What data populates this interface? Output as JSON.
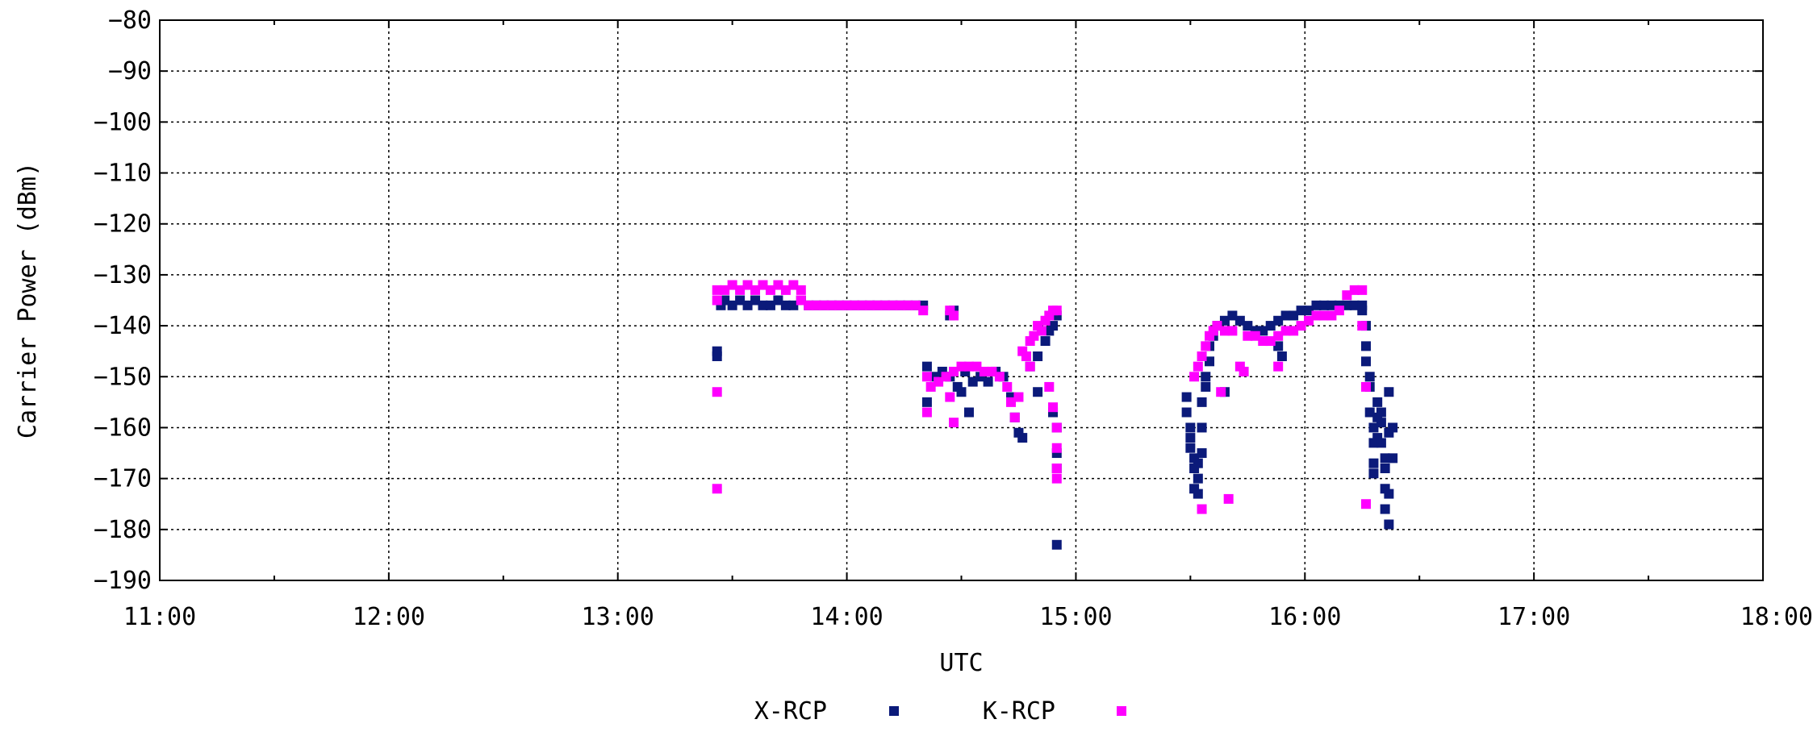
{
  "chart_data": {
    "type": "scatter",
    "title": "",
    "xlabel": "UTC",
    "ylabel": "Carrier Power (dBm)",
    "xlim": [
      "11:00",
      "18:00"
    ],
    "ylim": [
      -190,
      -80
    ],
    "grid": true,
    "legend_position": "bottom-center",
    "x_ticks": [
      "11:00",
      "12:00",
      "13:00",
      "14:00",
      "15:00",
      "16:00",
      "17:00",
      "18:00"
    ],
    "y_ticks": [
      -80,
      -90,
      -100,
      -110,
      -120,
      -130,
      -140,
      -150,
      -160,
      -170,
      -180,
      -190
    ],
    "series": [
      {
        "name": "X-RCP",
        "color": "#0b1a7a",
        "points": [
          [
            "13:26",
            -145
          ],
          [
            "13:26",
            -146
          ],
          [
            "13:27",
            -136
          ],
          [
            "13:28",
            -135
          ],
          [
            "13:30",
            -136
          ],
          [
            "13:32",
            -135
          ],
          [
            "13:34",
            -136
          ],
          [
            "13:36",
            -135
          ],
          [
            "13:38",
            -136
          ],
          [
            "13:40",
            -136
          ],
          [
            "13:42",
            -135
          ],
          [
            "13:44",
            -136
          ],
          [
            "13:46",
            -136
          ],
          [
            "13:48",
            -135
          ],
          [
            "13:50",
            -136
          ],
          [
            "13:52",
            -136
          ],
          [
            "13:54",
            -136
          ],
          [
            "13:56",
            -136
          ],
          [
            "13:58",
            -136
          ],
          [
            "14:00",
            -136
          ],
          [
            "14:02",
            -136
          ],
          [
            "14:04",
            -136
          ],
          [
            "14:06",
            -136
          ],
          [
            "14:08",
            -136
          ],
          [
            "14:10",
            -136
          ],
          [
            "14:12",
            -136
          ],
          [
            "14:14",
            -136
          ],
          [
            "14:16",
            -136
          ],
          [
            "14:18",
            -136
          ],
          [
            "14:20",
            -136
          ],
          [
            "14:21",
            -148
          ],
          [
            "14:21",
            -155
          ],
          [
            "14:23",
            -150
          ],
          [
            "14:25",
            -149
          ],
          [
            "14:27",
            -150
          ],
          [
            "14:29",
            -152
          ],
          [
            "14:31",
            -149
          ],
          [
            "14:33",
            -151
          ],
          [
            "14:27",
            -138
          ],
          [
            "14:28",
            -137
          ],
          [
            "14:30",
            -153
          ],
          [
            "14:32",
            -157
          ],
          [
            "14:35",
            -150
          ],
          [
            "14:37",
            -151
          ],
          [
            "14:39",
            -149
          ],
          [
            "14:41",
            -150
          ],
          [
            "14:43",
            -154
          ],
          [
            "14:44",
            -158
          ],
          [
            "14:45",
            -161
          ],
          [
            "14:46",
            -162
          ],
          [
            "14:48",
            -148
          ],
          [
            "14:50",
            -146
          ],
          [
            "14:52",
            -143
          ],
          [
            "14:53",
            -141
          ],
          [
            "14:54",
            -140
          ],
          [
            "14:55",
            -138
          ],
          [
            "14:50",
            -153
          ],
          [
            "14:54",
            -157
          ],
          [
            "14:55",
            -160
          ],
          [
            "14:55",
            -165
          ],
          [
            "14:55",
            -168
          ],
          [
            "14:55",
            -183
          ],
          [
            "15:29",
            -154
          ],
          [
            "15:29",
            -157
          ],
          [
            "15:30",
            -160
          ],
          [
            "15:30",
            -162
          ],
          [
            "15:30",
            -164
          ],
          [
            "15:31",
            -166
          ],
          [
            "15:31",
            -168
          ],
          [
            "15:31",
            -172
          ],
          [
            "15:32",
            -170
          ],
          [
            "15:32",
            -173
          ],
          [
            "15:32",
            -167
          ],
          [
            "15:33",
            -165
          ],
          [
            "15:33",
            -160
          ],
          [
            "15:33",
            -155
          ],
          [
            "15:34",
            -152
          ],
          [
            "15:34",
            -150
          ],
          [
            "15:35",
            -147
          ],
          [
            "15:35",
            -144
          ],
          [
            "15:36",
            -142
          ],
          [
            "15:37",
            -140
          ],
          [
            "15:39",
            -139
          ],
          [
            "15:41",
            -138
          ],
          [
            "15:43",
            -139
          ],
          [
            "15:45",
            -140
          ],
          [
            "15:47",
            -141
          ],
          [
            "15:49",
            -141
          ],
          [
            "15:51",
            -140
          ],
          [
            "15:53",
            -139
          ],
          [
            "15:55",
            -138
          ],
          [
            "15:57",
            -138
          ],
          [
            "15:59",
            -137
          ],
          [
            "16:01",
            -137
          ],
          [
            "16:03",
            -136
          ],
          [
            "16:05",
            -136
          ],
          [
            "16:07",
            -136
          ],
          [
            "16:09",
            -136
          ],
          [
            "16:11",
            -136
          ],
          [
            "16:13",
            -136
          ],
          [
            "16:15",
            -136
          ],
          [
            "15:39",
            -153
          ],
          [
            "15:53",
            -144
          ],
          [
            "15:54",
            -146
          ],
          [
            "16:15",
            -137
          ],
          [
            "16:16",
            -140
          ],
          [
            "16:16",
            -144
          ],
          [
            "16:16",
            -147
          ],
          [
            "16:17",
            -150
          ],
          [
            "16:17",
            -152
          ],
          [
            "16:17",
            -157
          ],
          [
            "16:18",
            -160
          ],
          [
            "16:18",
            -163
          ],
          [
            "16:18",
            -167
          ],
          [
            "16:18",
            -169
          ],
          [
            "16:19",
            -155
          ],
          [
            "16:19",
            -158
          ],
          [
            "16:19",
            -162
          ],
          [
            "16:20",
            -157
          ],
          [
            "16:20",
            -159
          ],
          [
            "16:20",
            -163
          ],
          [
            "16:21",
            -166
          ],
          [
            "16:21",
            -168
          ],
          [
            "16:21",
            -172
          ],
          [
            "16:21",
            -176
          ],
          [
            "16:22",
            -153
          ],
          [
            "16:22",
            -161
          ],
          [
            "16:22",
            -173
          ],
          [
            "16:22",
            -179
          ],
          [
            "16:23",
            -166
          ],
          [
            "16:23",
            -160
          ]
        ]
      },
      {
        "name": "K-RCP",
        "color": "#ff00ff",
        "points": [
          [
            "13:26",
            -153
          ],
          [
            "13:26",
            -172
          ],
          [
            "13:26",
            -133
          ],
          [
            "13:26",
            -135
          ],
          [
            "13:28",
            -133
          ],
          [
            "13:30",
            -132
          ],
          [
            "13:32",
            -133
          ],
          [
            "13:34",
            -132
          ],
          [
            "13:36",
            -133
          ],
          [
            "13:38",
            -132
          ],
          [
            "13:40",
            -133
          ],
          [
            "13:42",
            -132
          ],
          [
            "13:44",
            -133
          ],
          [
            "13:46",
            -132
          ],
          [
            "13:48",
            -133
          ],
          [
            "13:48",
            -135
          ],
          [
            "13:50",
            -136
          ],
          [
            "13:52",
            -136
          ],
          [
            "13:54",
            -136
          ],
          [
            "13:56",
            -136
          ],
          [
            "13:58",
            -136
          ],
          [
            "14:00",
            -136
          ],
          [
            "14:02",
            -136
          ],
          [
            "14:04",
            -136
          ],
          [
            "14:06",
            -136
          ],
          [
            "14:08",
            -136
          ],
          [
            "14:10",
            -136
          ],
          [
            "14:12",
            -136
          ],
          [
            "14:14",
            -136
          ],
          [
            "14:16",
            -136
          ],
          [
            "14:18",
            -136
          ],
          [
            "14:20",
            -137
          ],
          [
            "14:21",
            -150
          ],
          [
            "14:21",
            -157
          ],
          [
            "14:22",
            -152
          ],
          [
            "14:24",
            -151
          ],
          [
            "14:26",
            -150
          ],
          [
            "14:28",
            -149
          ],
          [
            "14:30",
            -148
          ],
          [
            "14:32",
            -148
          ],
          [
            "14:27",
            -137
          ],
          [
            "14:28",
            -138
          ],
          [
            "14:27",
            -154
          ],
          [
            "14:28",
            -159
          ],
          [
            "14:34",
            -148
          ],
          [
            "14:36",
            -149
          ],
          [
            "14:38",
            -149
          ],
          [
            "14:40",
            -150
          ],
          [
            "14:42",
            -152
          ],
          [
            "14:43",
            -155
          ],
          [
            "14:44",
            -158
          ],
          [
            "14:45",
            -154
          ],
          [
            "14:46",
            -145
          ],
          [
            "14:47",
            -146
          ],
          [
            "14:48",
            -143
          ],
          [
            "14:49",
            -142
          ],
          [
            "14:50",
            -140
          ],
          [
            "14:51",
            -141
          ],
          [
            "14:52",
            -139
          ],
          [
            "14:53",
            -138
          ],
          [
            "14:54",
            -137
          ],
          [
            "14:55",
            -137
          ],
          [
            "14:48",
            -148
          ],
          [
            "14:53",
            -152
          ],
          [
            "14:54",
            -156
          ],
          [
            "14:55",
            -160
          ],
          [
            "14:55",
            -164
          ],
          [
            "14:55",
            -168
          ],
          [
            "14:55",
            -170
          ],
          [
            "15:31",
            -150
          ],
          [
            "15:32",
            -148
          ],
          [
            "15:33",
            -146
          ],
          [
            "15:33",
            -176
          ],
          [
            "15:34",
            -144
          ],
          [
            "15:35",
            -142
          ],
          [
            "15:36",
            -141
          ],
          [
            "15:37",
            -140
          ],
          [
            "15:38",
            -153
          ],
          [
            "15:39",
            -141
          ],
          [
            "15:40",
            -174
          ],
          [
            "15:41",
            -141
          ],
          [
            "15:43",
            -148
          ],
          [
            "15:44",
            -149
          ],
          [
            "15:45",
            -142
          ],
          [
            "15:47",
            -142
          ],
          [
            "15:49",
            -143
          ],
          [
            "15:51",
            -143
          ],
          [
            "15:53",
            -148
          ],
          [
            "15:53",
            -142
          ],
          [
            "15:55",
            -141
          ],
          [
            "15:57",
            -141
          ],
          [
            "15:59",
            -140
          ],
          [
            "16:01",
            -139
          ],
          [
            "16:03",
            -138
          ],
          [
            "16:05",
            -138
          ],
          [
            "16:07",
            -138
          ],
          [
            "16:09",
            -137
          ],
          [
            "16:11",
            -134
          ],
          [
            "16:13",
            -133
          ],
          [
            "16:15",
            -133
          ],
          [
            "16:15",
            -140
          ],
          [
            "16:16",
            -152
          ],
          [
            "16:16",
            -175
          ]
        ]
      }
    ]
  }
}
